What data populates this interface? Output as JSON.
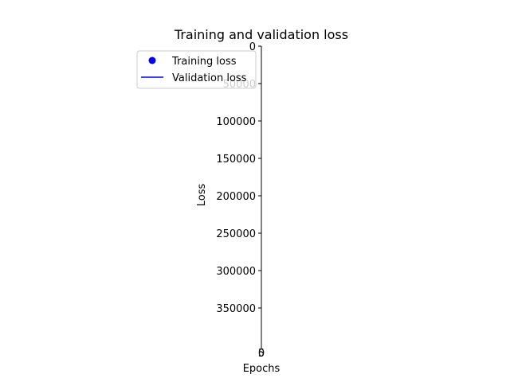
{
  "chart_data": {
    "type": "line",
    "title": "Training and validation loss",
    "xlabel": "Epochs",
    "ylabel": "Loss",
    "y_inverted": true,
    "ylim": [
      0,
      400000
    ],
    "y_ticks": [
      0,
      50000,
      100000,
      150000,
      200000,
      250000,
      300000,
      350000
    ],
    "x_tick_labels": [
      "0",
      "5"
    ],
    "grid": false,
    "legend_position": "upper-left",
    "series": [
      {
        "name": "Training loss",
        "style": "points",
        "color": "#0000ff",
        "values": []
      },
      {
        "name": "Validation loss",
        "style": "line",
        "color": "#0000ff",
        "values": []
      }
    ]
  }
}
